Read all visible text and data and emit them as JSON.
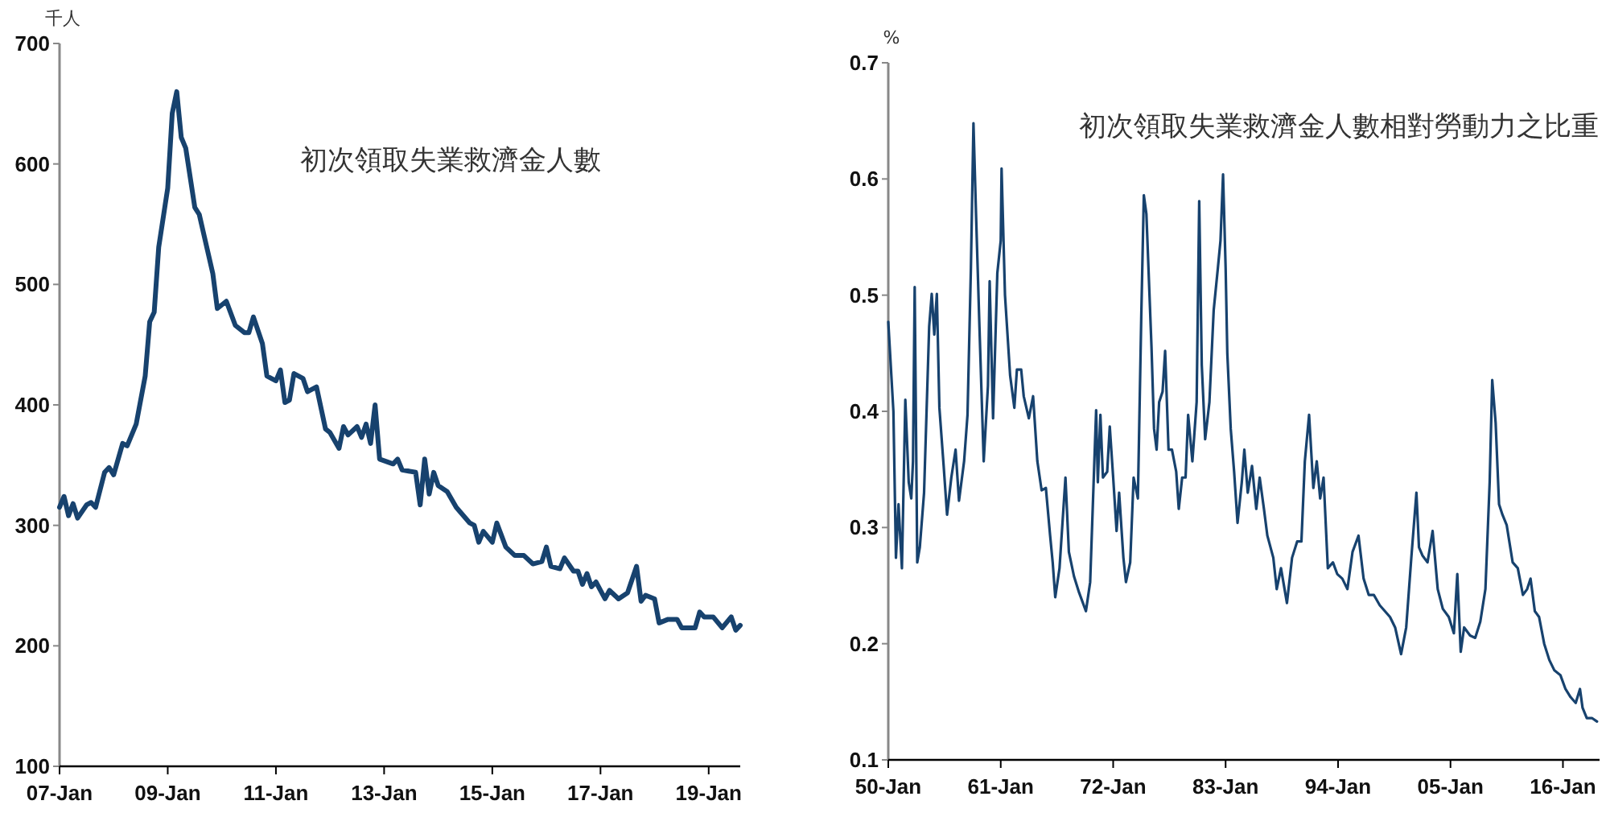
{
  "chart_data": [
    {
      "type": "line",
      "title": "初次領取失業救濟金人數",
      "ylabel": "千人",
      "x": [
        "2007-01",
        "2007-02",
        "2007-03",
        "2007-04",
        "2007-05",
        "2007-07",
        "2007-08",
        "2007-09",
        "2007-11",
        "2007-12",
        "2008-01",
        "2008-03",
        "2008-04",
        "2008-06",
        "2008-08",
        "2008-09",
        "2008-10",
        "2008-11",
        "2009-01",
        "2009-02",
        "2009-03",
        "2009-04",
        "2009-05",
        "2009-07",
        "2009-08",
        "2009-11",
        "2009-12",
        "2010-02",
        "2010-04",
        "2010-06",
        "2010-07",
        "2010-08",
        "2010-10",
        "2010-11",
        "2011-01",
        "2011-02",
        "2011-03",
        "2011-04",
        "2011-05",
        "2011-07",
        "2011-08",
        "2011-10",
        "2011-12",
        "2012-01",
        "2012-03",
        "2012-04",
        "2012-05",
        "2012-07",
        "2012-08",
        "2012-09",
        "2012-10",
        "2012-11",
        "2012-12",
        "2013-03",
        "2013-04",
        "2013-05",
        "2013-08",
        "2013-09",
        "2013-10",
        "2013-11",
        "2013-12",
        "2014-01",
        "2014-03",
        "2014-05",
        "2014-08",
        "2014-09",
        "2014-10",
        "2014-11",
        "2015-01",
        "2015-02",
        "2015-04",
        "2015-06",
        "2015-08",
        "2015-10",
        "2015-12",
        "2016-01",
        "2016-02",
        "2016-04",
        "2016-05",
        "2016-07",
        "2016-08",
        "2016-09",
        "2016-10",
        "2016-11",
        "2016-12",
        "2017-02",
        "2017-03",
        "2017-05",
        "2017-07",
        "2017-09",
        "2017-10",
        "2017-11",
        "2018-01",
        "2018-02",
        "2018-04",
        "2018-06",
        "2018-07",
        "2018-10",
        "2018-11",
        "2018-12",
        "2019-02",
        "2019-04",
        "2019-06",
        "2019-07",
        "2019-08"
      ],
      "series": [
        {
          "color": "#17426e",
          "values": [
            315,
            324,
            308,
            318,
            306,
            317,
            319,
            315,
            344,
            348,
            342,
            368,
            366,
            384,
            424,
            469,
            477,
            531,
            580,
            642,
            660,
            622,
            613,
            564,
            558,
            509,
            480,
            486,
            466,
            460,
            460,
            473,
            451,
            424,
            420,
            429,
            402,
            404,
            426,
            422,
            411,
            415,
            380,
            377,
            364,
            382,
            375,
            382,
            373,
            384,
            368,
            400,
            355,
            351,
            355,
            346,
            344,
            317,
            355,
            326,
            344,
            333,
            328,
            315,
            302,
            300,
            286,
            295,
            286,
            302,
            282,
            275,
            275,
            268,
            270,
            282,
            266,
            264,
            273,
            262,
            262,
            251,
            260,
            249,
            253,
            239,
            246,
            239,
            244,
            266,
            237,
            242,
            239,
            219,
            222,
            222,
            215,
            215,
            228,
            224,
            224,
            215,
            224,
            213,
            217
          ]
        }
      ],
      "xlim": [
        "2007-01",
        "2019-08"
      ],
      "ylim": [
        100,
        700
      ],
      "xticks": [
        {
          "value": "2007-01",
          "label": "07-Jan"
        },
        {
          "value": "2009-01",
          "label": "09-Jan"
        },
        {
          "value": "2011-01",
          "label": "11-Jan"
        },
        {
          "value": "2013-01",
          "label": "13-Jan"
        },
        {
          "value": "2015-01",
          "label": "15-Jan"
        },
        {
          "value": "2017-01",
          "label": "17-Jan"
        },
        {
          "value": "2019-01",
          "label": "19-Jan"
        }
      ],
      "yticks": [
        100,
        200,
        300,
        400,
        500,
        600,
        700
      ]
    },
    {
      "type": "line",
      "title": "初次領取失業救濟金人數相對勞動力之比重",
      "ylabel": "%",
      "x": [
        "1950-01",
        "1950-07",
        "1950-10",
        "1951-01",
        "1951-05",
        "1951-09",
        "1952-01",
        "1952-04",
        "1952-06",
        "1952-08",
        "1952-11",
        "1953-02",
        "1953-07",
        "1954-01",
        "1954-04",
        "1954-07",
        "1954-10",
        "1955-01",
        "1955-06",
        "1955-10",
        "1956-03",
        "1956-08",
        "1956-12",
        "1957-06",
        "1957-10",
        "1958-02",
        "1958-05",
        "1958-08",
        "1958-12",
        "1959-05",
        "1959-10",
        "1959-12",
        "1960-04",
        "1960-09",
        "1961-01",
        "1961-02",
        "1961-06",
        "1961-12",
        "1962-05",
        "1962-08",
        "1963-01",
        "1963-04",
        "1963-10",
        "1964-03",
        "1964-08",
        "1965-01",
        "1965-06",
        "1965-11",
        "1966-02",
        "1966-05",
        "1966-10",
        "1967-05",
        "1967-09",
        "1968-03",
        "1968-09",
        "1969-05",
        "1969-10",
        "1970-05",
        "1970-07",
        "1970-10",
        "1971-01",
        "1971-06",
        "1971-09",
        "1972-01",
        "1972-05",
        "1972-08",
        "1973-01",
        "1973-04",
        "1973-09",
        "1974-01",
        "1974-06",
        "1974-10",
        "1975-01",
        "1975-04",
        "1975-10",
        "1976-01",
        "1976-04",
        "1976-07",
        "1976-11",
        "1977-02",
        "1977-06",
        "1977-10",
        "1978-03",
        "1978-06",
        "1978-10",
        "1979-02",
        "1979-05",
        "1979-10",
        "1980-03",
        "1980-06",
        "1980-09",
        "1981-01",
        "1981-06",
        "1981-11",
        "1982-04",
        "1982-07",
        "1982-10",
        "1983-01",
        "1983-03",
        "1983-07",
        "1983-11",
        "1984-03",
        "1984-08",
        "1984-11",
        "1985-03",
        "1985-08",
        "1986-01",
        "1986-05",
        "1986-10",
        "1987-02",
        "1987-09",
        "1988-01",
        "1988-06",
        "1989-01",
        "1989-07",
        "1990-01",
        "1990-06",
        "1990-10",
        "1991-03",
        "1991-08",
        "1991-12",
        "1992-04",
        "1992-08",
        "1993-01",
        "1993-07",
        "1993-12",
        "1994-06",
        "1994-12",
        "1995-06",
        "1996-01",
        "1996-07",
        "1997-01",
        "1997-07",
        "1998-02",
        "1998-08",
        "1999-02",
        "1999-08",
        "2000-03",
        "2000-09",
        "2001-03",
        "2001-09",
        "2001-12",
        "2002-04",
        "2002-10",
        "2003-04",
        "2003-10",
        "2004-04",
        "2004-11",
        "2005-05",
        "2005-09",
        "2006-01",
        "2006-05",
        "2006-12",
        "2007-06",
        "2007-12",
        "2008-06",
        "2008-11",
        "2009-02",
        "2009-06",
        "2009-10",
        "2010-02",
        "2010-07",
        "2011-02",
        "2011-08",
        "2012-02",
        "2012-07",
        "2012-11",
        "2013-04",
        "2013-09",
        "2014-03",
        "2014-09",
        "2015-03",
        "2015-10",
        "2016-04",
        "2016-10",
        "2017-04",
        "2017-09",
        "2017-12",
        "2018-05",
        "2018-11",
        "2019-05"
      ],
      "series": [
        {
          "color": "#17426e",
          "values": [
            0.477,
            0.4,
            0.274,
            0.32,
            0.265,
            0.41,
            0.339,
            0.325,
            0.357,
            0.507,
            0.27,
            0.283,
            0.33,
            0.473,
            0.501,
            0.466,
            0.501,
            0.403,
            0.353,
            0.311,
            0.343,
            0.367,
            0.323,
            0.357,
            0.397,
            0.524,
            0.648,
            0.57,
            0.473,
            0.357,
            0.422,
            0.512,
            0.394,
            0.519,
            0.547,
            0.609,
            0.5,
            0.431,
            0.403,
            0.436,
            0.436,
            0.413,
            0.394,
            0.413,
            0.357,
            0.332,
            0.334,
            0.293,
            0.27,
            0.24,
            0.265,
            0.343,
            0.279,
            0.258,
            0.244,
            0.228,
            0.253,
            0.401,
            0.339,
            0.397,
            0.343,
            0.348,
            0.387,
            0.343,
            0.297,
            0.33,
            0.274,
            0.253,
            0.27,
            0.343,
            0.325,
            0.482,
            0.586,
            0.57,
            0.455,
            0.385,
            0.367,
            0.408,
            0.417,
            0.452,
            0.367,
            0.367,
            0.348,
            0.316,
            0.343,
            0.343,
            0.397,
            0.357,
            0.408,
            0.581,
            0.44,
            0.376,
            0.408,
            0.487,
            0.524,
            0.547,
            0.604,
            0.524,
            0.45,
            0.385,
            0.348,
            0.304,
            0.339,
            0.367,
            0.33,
            0.353,
            0.316,
            0.343,
            0.316,
            0.293,
            0.274,
            0.247,
            0.265,
            0.235,
            0.274,
            0.288,
            0.288,
            0.357,
            0.397,
            0.334,
            0.357,
            0.325,
            0.343,
            0.265,
            0.27,
            0.26,
            0.256,
            0.247,
            0.279,
            0.293,
            0.256,
            0.242,
            0.242,
            0.233,
            0.228,
            0.223,
            0.214,
            0.191,
            0.214,
            0.274,
            0.33,
            0.283,
            0.276,
            0.27,
            0.297,
            0.247,
            0.23,
            0.223,
            0.209,
            0.26,
            0.193,
            0.214,
            0.207,
            0.205,
            0.219,
            0.247,
            0.339,
            0.427,
            0.39,
            0.32,
            0.311,
            0.302,
            0.27,
            0.265,
            0.242,
            0.247,
            0.256,
            0.228,
            0.223,
            0.2,
            0.186,
            0.177,
            0.173,
            0.161,
            0.154,
            0.149,
            0.161,
            0.145,
            0.136,
            0.136,
            0.133
          ]
        }
      ],
      "xlim": [
        "1950-01",
        "2019-08"
      ],
      "ylim": [
        0.1,
        0.7
      ],
      "xticks": [
        {
          "value": "1950-01",
          "label": "50-Jan"
        },
        {
          "value": "1961-01",
          "label": "61-Jan"
        },
        {
          "value": "1972-01",
          "label": "72-Jan"
        },
        {
          "value": "1983-01",
          "label": "83-Jan"
        },
        {
          "value": "1994-01",
          "label": "94-Jan"
        },
        {
          "value": "2005-01",
          "label": "05-Jan"
        },
        {
          "value": "2016-01",
          "label": "16-Jan"
        }
      ],
      "yticks": [
        0.1,
        0.2,
        0.3,
        0.4,
        0.5,
        0.6,
        0.7
      ]
    }
  ]
}
